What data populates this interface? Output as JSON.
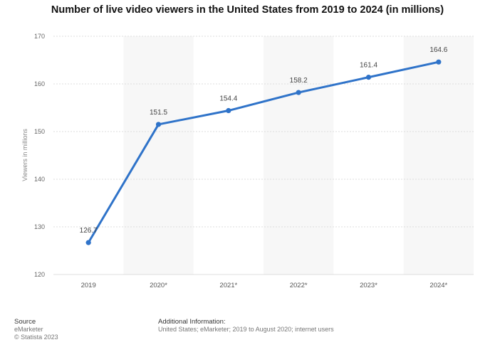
{
  "chart_data": {
    "type": "line",
    "title": "Number of live video viewers in the United States from 2019 to 2024 (in millions)",
    "xlabel": "",
    "ylabel": "Viewers in millions",
    "categories": [
      "2019",
      "2020*",
      "2021*",
      "2022*",
      "2023*",
      "2024*"
    ],
    "series": [
      {
        "values": [
          126.7,
          151.5,
          154.4,
          158.2,
          161.4,
          164.6
        ]
      }
    ],
    "data_labels": [
      "126.7",
      "151.5",
      "154.4",
      "158.2",
      "161.4",
      "164.6"
    ],
    "ylim": [
      120,
      170
    ],
    "yticks": [
      120,
      130,
      140,
      150,
      160,
      170
    ],
    "grid": true,
    "legend": "none",
    "line_color": "#2f73c9"
  },
  "footer": {
    "source_heading": "Source",
    "source_line1": "eMarketer",
    "source_line2": "© Statista 2023",
    "info_heading": "Additional Information:",
    "info_text": "United States; eMarketer; 2019 to August 2020; internet users"
  }
}
